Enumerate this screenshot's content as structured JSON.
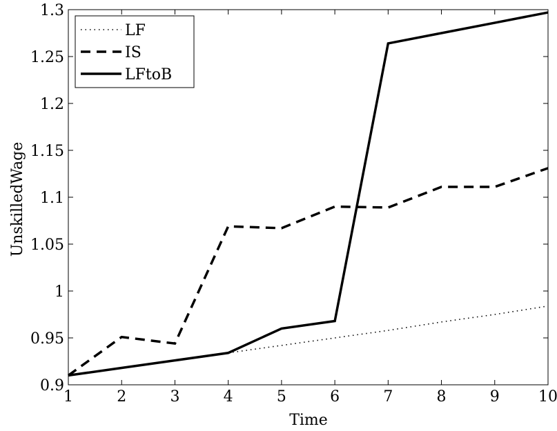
{
  "chart_data": {
    "type": "line",
    "title": "",
    "xlabel": "Time",
    "ylabel": "UnskilledWage",
    "xlim": [
      1,
      10
    ],
    "ylim": [
      0.9,
      1.3
    ],
    "x_ticks": [
      "1",
      "2",
      "3",
      "4",
      "5",
      "6",
      "7",
      "8",
      "9",
      "10"
    ],
    "y_ticks": [
      "0.9",
      "0.95",
      "1",
      "1.05",
      "1.1",
      "1.15",
      "1.2",
      "1.25",
      "1.3"
    ],
    "grid": false,
    "legend_position": "top-left",
    "x": [
      1,
      2,
      3,
      4,
      5,
      6,
      7,
      8,
      9,
      10
    ],
    "series": [
      {
        "name": "LF",
        "style": "dotted",
        "color": "#000000",
        "values": [
          0.91,
          0.918,
          0.926,
          0.934,
          0.942,
          0.95,
          0.958,
          0.967,
          0.975,
          0.984
        ]
      },
      {
        "name": "IS",
        "style": "dashed",
        "color": "#000000",
        "values": [
          0.91,
          0.951,
          0.944,
          1.069,
          1.067,
          1.09,
          1.089,
          1.111,
          1.111,
          1.131
        ]
      },
      {
        "name": "LFtoB",
        "style": "solid",
        "color": "#000000",
        "values": [
          0.91,
          0.918,
          0.926,
          0.934,
          0.96,
          0.968,
          1.264,
          1.275,
          1.286,
          1.297
        ]
      }
    ]
  }
}
